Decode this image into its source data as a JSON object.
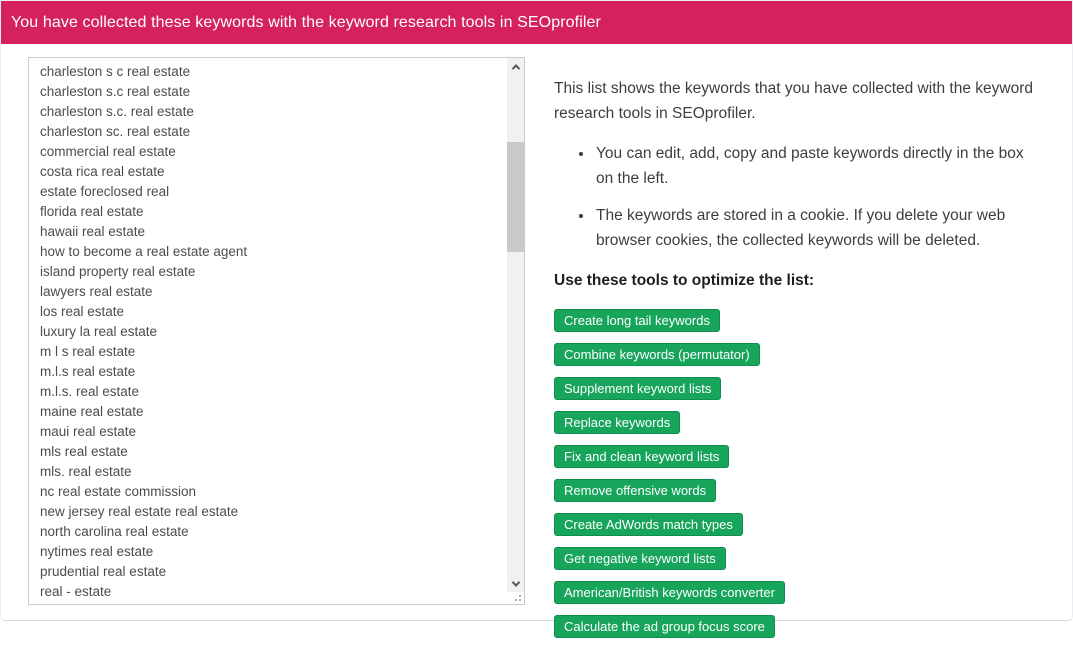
{
  "header": {
    "title": "You have collected these keywords with the keyword research tools in SEOprofiler"
  },
  "colors": {
    "header_bg": "#d5215f",
    "header_text": "#ffffff",
    "button_bg": "#17a45b",
    "button_border": "#0f8f4e",
    "button_text": "#ffffff"
  },
  "keyword_box": {
    "keywords": [
      "charleston s c real estate",
      "charleston s.c real estate",
      "charleston s.c. real estate",
      "charleston sc. real estate",
      "commercial real estate",
      "costa rica real estate",
      "estate foreclosed real",
      "florida real estate",
      "hawaii real estate",
      "how to become a real estate agent",
      "island property real estate",
      "lawyers real estate",
      "los real estate",
      "luxury la real estate",
      "m l s real estate",
      "m.l.s real estate",
      "m.l.s. real estate",
      "maine real estate",
      "maui real estate",
      "mls real estate",
      "mls. real estate",
      "nc real estate commission",
      "new jersey real estate real estate",
      "north carolina real estate",
      "nytimes real estate",
      "prudential real estate",
      "real - estate"
    ]
  },
  "info_panel": {
    "intro": "This list shows the keywords that you have collected with the keyword research tools in SEOprofiler.",
    "bullets": [
      "You can edit, add, copy and paste keywords directly in the box on the left.",
      "The keywords are stored in a cookie. If you delete your web browser cookies, the collected keywords will be deleted."
    ],
    "tools_heading": "Use these tools to optimize the list:",
    "tool_buttons": [
      "Create long tail keywords",
      "Combine keywords (permutator)",
      "Supplement keyword lists",
      "Replace keywords",
      "Fix and clean keyword lists",
      "Remove offensive words",
      "Create AdWords match types",
      "Get negative keyword lists",
      "American/British keywords converter",
      "Calculate the ad group focus score"
    ]
  }
}
